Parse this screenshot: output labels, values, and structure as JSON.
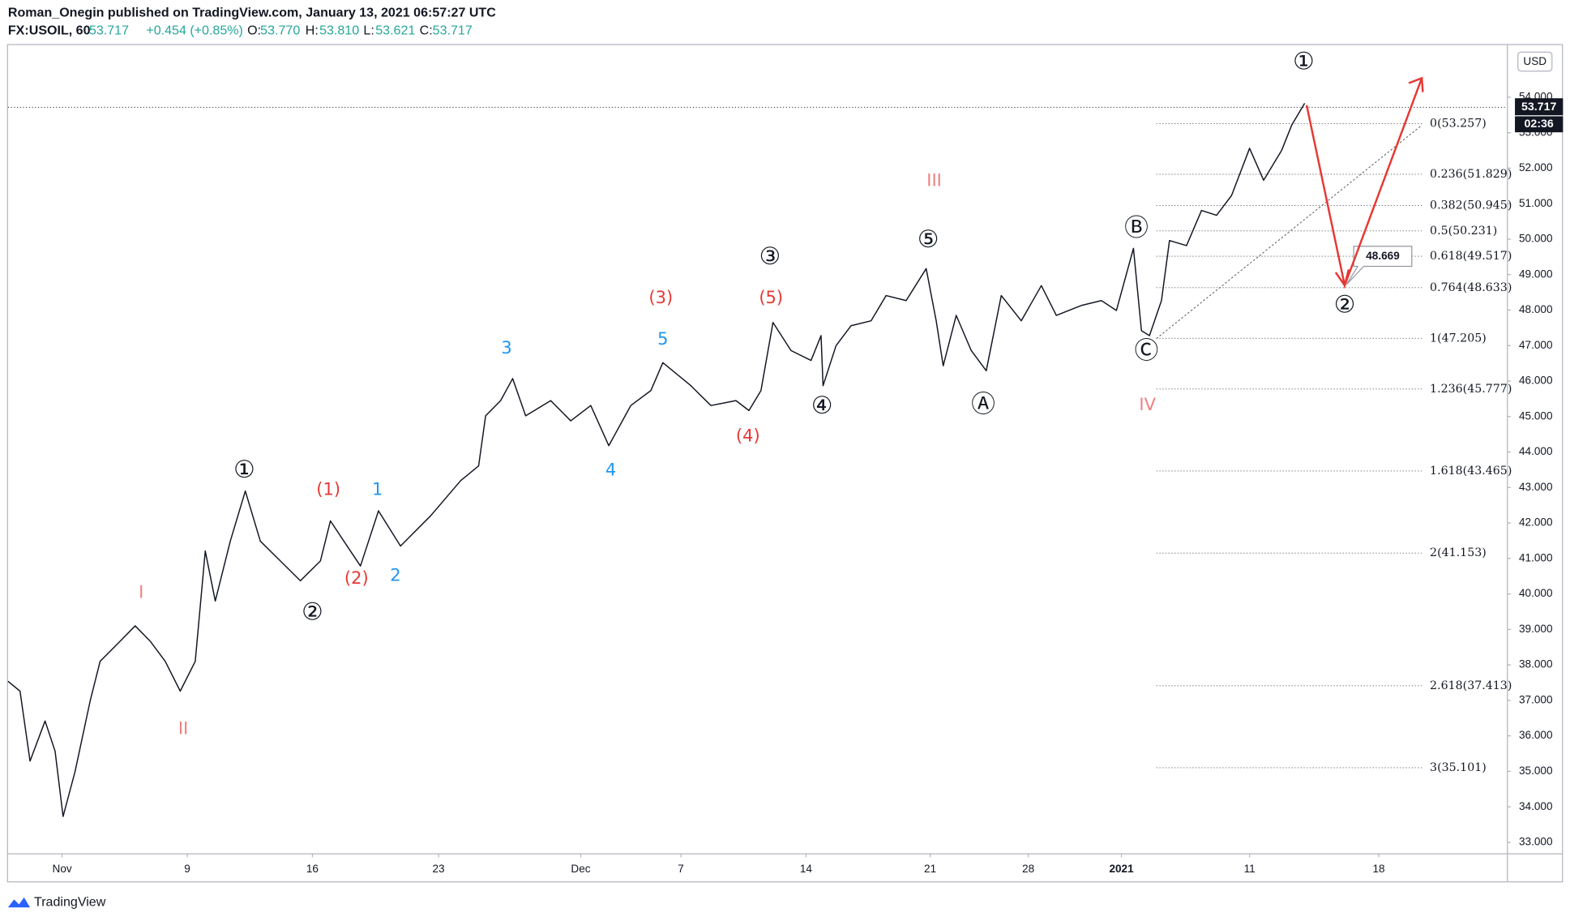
{
  "header": {
    "publisher": "Roman_Onegin published on TradingView.com, January 13, 2021 06:57:27 UTC",
    "symbol": "FX:USOIL, 60",
    "last": "53.717",
    "change": "+0.454 (+0.85%)",
    "o_label": "O:",
    "o": "53.770",
    "h_label": "H:",
    "h": "53.810",
    "l_label": "L:",
    "l": "53.621",
    "c_label": "C:",
    "c": "53.717"
  },
  "chart_data": {
    "type": "line",
    "color": "#131722",
    "x": [
      -2.16,
      -1.68,
      -1.28,
      -0.68,
      -0.28,
      0.04,
      0.52,
      1.12,
      1.52,
      2.32,
      2.92,
      3.52,
      4.12,
      4.72,
      5.32,
      5.72,
      6.12,
      6.72,
      7.32,
      7.92,
      8.72,
      9.52,
      10.32,
      10.72,
      11.52,
      11.92,
      12.64,
      13.52,
      14.72,
      15.92,
      16.64,
      16.92,
      17.52,
      18.0,
      18.52,
      19.52,
      20.32,
      21.12,
      21.84,
      22.72,
      23.52,
      24.0,
      25.12,
      25.92,
      26.92,
      27.44,
      27.92,
      28.4,
      29.12,
      29.92,
      30.32,
      30.4,
      30.92,
      31.52,
      32.32,
      32.92,
      33.72,
      34.52,
      34.92,
      35.2,
      35.72,
      36.32,
      36.92,
      37.52,
      38.32,
      39.12,
      39.72,
      40.72,
      41.52,
      42.12,
      42.8,
      43.12,
      43.44,
      43.92,
      44.24,
      44.92,
      45.52,
      46.12,
      46.72,
      47.44,
      48.0,
      48.72,
      49.12,
      49.64
    ],
    "values": [
      37.54,
      37.26,
      35.29,
      36.42,
      35.57,
      33.73,
      35.0,
      36.98,
      38.1,
      38.67,
      39.1,
      38.67,
      38.1,
      37.26,
      38.1,
      41.21,
      39.8,
      41.49,
      42.9,
      41.49,
      40.93,
      40.37,
      40.93,
      42.06,
      41.21,
      40.79,
      42.34,
      41.35,
      42.2,
      43.19,
      43.61,
      45.02,
      45.45,
      46.07,
      45.02,
      45.45,
      44.88,
      45.31,
      44.18,
      45.31,
      45.73,
      46.52,
      45.87,
      45.31,
      45.45,
      45.17,
      45.73,
      47.65,
      46.86,
      46.58,
      47.28,
      45.87,
      47.0,
      47.56,
      47.7,
      48.41,
      48.27,
      49.17,
      47.7,
      46.43,
      47.85,
      46.86,
      46.29,
      48.41,
      47.7,
      48.69,
      47.85,
      48.13,
      48.27,
      47.99,
      49.74,
      47.42,
      47.28,
      48.27,
      49.96,
      49.82,
      50.81,
      50.67,
      51.23,
      52.56,
      51.66,
      52.5,
      53.21,
      53.83
    ],
    "xlim": [
      -2.16,
      57.72
    ],
    "xticks": [
      {
        "value": 0,
        "label": "Nov"
      },
      {
        "value": 5,
        "label": "9"
      },
      {
        "value": 10,
        "label": "16"
      },
      {
        "value": 15.04,
        "label": "23"
      },
      {
        "value": 20.72,
        "label": "Dec"
      },
      {
        "value": 24.72,
        "label": "7"
      },
      {
        "value": 29.72,
        "label": "14"
      },
      {
        "value": 34.68,
        "label": "21"
      },
      {
        "value": 38.6,
        "label": "28"
      },
      {
        "value": 42.32,
        "label": "2021"
      },
      {
        "value": 47.44,
        "label": "11"
      },
      {
        "value": 52.6,
        "label": "18"
      }
    ],
    "ylim": [
      32.69,
      55.47
    ],
    "yticks": [
      {
        "value": 33,
        "label": "33.000"
      },
      {
        "value": 34,
        "label": "34.000"
      },
      {
        "value": 35,
        "label": "35.000"
      },
      {
        "value": 36,
        "label": "36.000"
      },
      {
        "value": 37,
        "label": "37.000"
      },
      {
        "value": 38,
        "label": "38.000"
      },
      {
        "value": 39,
        "label": "39.000"
      },
      {
        "value": 40,
        "label": "40.000"
      },
      {
        "value": 41,
        "label": "41.000"
      },
      {
        "value": 42,
        "label": "42.000"
      },
      {
        "value": 43,
        "label": "43.000"
      },
      {
        "value": 44,
        "label": "44.000"
      },
      {
        "value": 45,
        "label": "45.000"
      },
      {
        "value": 46,
        "label": "46.000"
      },
      {
        "value": 47,
        "label": "47.000"
      },
      {
        "value": 48,
        "label": "48.000"
      },
      {
        "value": 49,
        "label": "49.000"
      },
      {
        "value": 50,
        "label": "50.000"
      },
      {
        "value": 51,
        "label": "51.000"
      },
      {
        "value": 52,
        "label": "52.000"
      },
      {
        "value": 53,
        "label": "53.000"
      },
      {
        "value": 54,
        "label": "54.000"
      }
    ],
    "currency": "USD",
    "last_price": 53.717,
    "countdown": "02:36",
    "price_callout": 48.669,
    "fib_levels": [
      {
        "label": "0(53.257)",
        "value": 53.257
      },
      {
        "label": "0.236(51.829)",
        "value": 51.829
      },
      {
        "label": "0.382(50.945)",
        "value": 50.945
      },
      {
        "label": "0.5(50.231)",
        "value": 50.231
      },
      {
        "label": "0.618(49.517)",
        "value": 49.517
      },
      {
        "label": "0.764(48.633)",
        "value": 48.633
      },
      {
        "label": "1(47.205)",
        "value": 47.205
      },
      {
        "label": "1.236(45.777)",
        "value": 45.777
      },
      {
        "label": "1.618(43.465)",
        "value": 43.465
      },
      {
        "label": "2(41.153)",
        "value": 41.153
      },
      {
        "label": "2.618(37.413)",
        "value": 37.413
      },
      {
        "label": "3(35.101)",
        "value": 35.101
      }
    ],
    "annotations": [
      {
        "text": "I",
        "x": 3.16,
        "y": 40.03,
        "color": "#f08080"
      },
      {
        "text": "II",
        "x": 4.84,
        "y": 36.19,
        "color": "#f08080"
      },
      {
        "text": "①",
        "x": 7.28,
        "y": 43.47,
        "color": "#131722"
      },
      {
        "text": "②",
        "x": 10.0,
        "y": 39.46,
        "color": "#131722"
      },
      {
        "text": "(1)",
        "x": 10.64,
        "y": 42.93,
        "color": "#e53935"
      },
      {
        "text": "(2)",
        "x": 11.76,
        "y": 40.42,
        "color": "#e53935"
      },
      {
        "text": "1",
        "x": 12.6,
        "y": 42.93,
        "color": "#2196f3"
      },
      {
        "text": "2",
        "x": 13.32,
        "y": 40.51,
        "color": "#2196f3"
      },
      {
        "text": "3",
        "x": 17.76,
        "y": 46.91,
        "color": "#2196f3"
      },
      {
        "text": "4",
        "x": 21.92,
        "y": 43.47,
        "color": "#2196f3"
      },
      {
        "text": "5",
        "x": 24.0,
        "y": 47.17,
        "color": "#2196f3"
      },
      {
        "text": "(3)",
        "x": 23.92,
        "y": 48.33,
        "color": "#e53935"
      },
      {
        "text": "③",
        "x": 28.28,
        "y": 49.48,
        "color": "#131722"
      },
      {
        "text": "(5)",
        "x": 28.32,
        "y": 48.33,
        "color": "#e53935"
      },
      {
        "text": "(4)",
        "x": 27.4,
        "y": 44.43,
        "color": "#e53935"
      },
      {
        "text": "④",
        "x": 30.36,
        "y": 45.28,
        "color": "#131722"
      },
      {
        "text": "III",
        "x": 34.84,
        "y": 51.63,
        "color": "#f08080"
      },
      {
        "text": "⑤",
        "x": 34.6,
        "y": 49.96,
        "color": "#131722"
      },
      {
        "text": "Ⓐ",
        "x": 36.8,
        "y": 45.33,
        "color": "#131722"
      },
      {
        "text": "Ⓑ",
        "x": 42.92,
        "y": 50.3,
        "color": "#131722"
      },
      {
        "text": "Ⓒ",
        "x": 43.32,
        "y": 46.83,
        "color": "#131722"
      },
      {
        "text": "IV",
        "x": 43.36,
        "y": 45.31,
        "color": "#f08080"
      },
      {
        "text": "①",
        "x": 49.6,
        "y": 54.98,
        "color": "#131722"
      },
      {
        "text": "②",
        "x": 51.24,
        "y": 48.13,
        "color": "#131722"
      }
    ]
  },
  "footer": {
    "brand": "TradingView"
  }
}
